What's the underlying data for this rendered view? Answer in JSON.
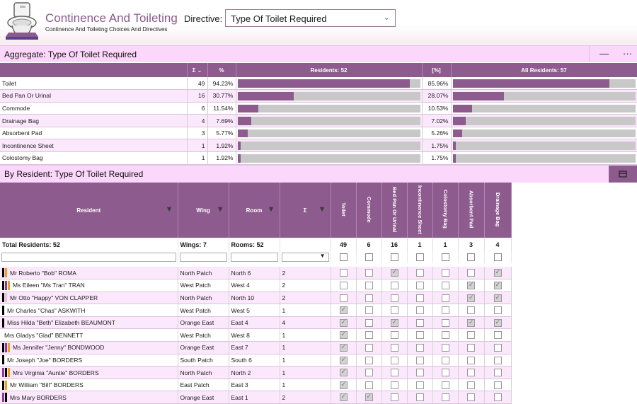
{
  "app": {
    "title": "Continence And Toileting",
    "subtitle": "Continence And Toileting Choices And Directives",
    "directive_label": "Directive:",
    "directive_value": "Type Of Toilet Required"
  },
  "aggregate": {
    "title": "Aggregate: Type Of Toilet Required",
    "minimize_icon": "—",
    "more_icon": "···",
    "headers": {
      "sigma": "Σ",
      "pct": "%",
      "residents": "Residents: 52",
      "bracket_pct": "[%]",
      "all_residents": "All Residents: 57"
    },
    "rows": [
      {
        "label": "Toilet",
        "count": "49",
        "pct": "94.23%",
        "frac": 0.9423,
        "all_pct": "85.96%",
        "all_frac": 0.8596
      },
      {
        "label": "Bed Pan Or Urinal",
        "count": "16",
        "pct": "30.77%",
        "frac": 0.3077,
        "all_pct": "28.07%",
        "all_frac": 0.2807
      },
      {
        "label": "Commode",
        "count": "6",
        "pct": "11.54%",
        "frac": 0.1154,
        "all_pct": "10.53%",
        "all_frac": 0.1053
      },
      {
        "label": "Drainage Bag",
        "count": "4",
        "pct": "7.69%",
        "frac": 0.0769,
        "all_pct": "7.02%",
        "all_frac": 0.0702
      },
      {
        "label": "Absorbent Pad",
        "count": "3",
        "pct": "5.77%",
        "frac": 0.0577,
        "all_pct": "5.26%",
        "all_frac": 0.0526
      },
      {
        "label": "Incontinence Sheet",
        "count": "1",
        "pct": "1.92%",
        "frac": 0.0192,
        "all_pct": "1.75%",
        "all_frac": 0.0175
      },
      {
        "label": "Colostomy Bag",
        "count": "1",
        "pct": "1.92%",
        "frac": 0.0192,
        "all_pct": "1.75%",
        "all_frac": 0.0175
      }
    ]
  },
  "by_resident": {
    "title": "By Resident: Type Of Toilet Required",
    "headers": {
      "resident": "Resident",
      "wing": "Wing",
      "room": "Room",
      "sigma": "Σ",
      "toilet": "Toilet",
      "commode": "Commode",
      "bedpan": "Bed Pan Or Urinal",
      "incontinence": "Incontinence Sheet",
      "colostomy": "Colostomy Bag",
      "absorbent": "Absorbent Pad",
      "drainage": "Drainage Bag"
    },
    "totals": {
      "residents": "Total Residents: 52",
      "wings": "Wings: 7",
      "rooms": "Rooms: 52",
      "toilet": "49",
      "commode": "6",
      "bedpan": "16",
      "incontinence": "1",
      "colostomy": "1",
      "absorbent": "3",
      "drainage": "4"
    },
    "rows": [
      {
        "name": "Mr Roberto \"Bob\" ROMA",
        "wing": "North Patch",
        "room": "North   6",
        "sum": "2",
        "markers": [
          "#000000",
          "#f0a020"
        ],
        "checks": [
          false,
          false,
          true,
          false,
          false,
          false,
          true
        ]
      },
      {
        "name": "Ms Eileen \"Ms Tran\" TRAN",
        "wing": "West Patch",
        "room": "West  4",
        "sum": "2",
        "markers": [
          "#000000",
          "#8d3b8d",
          "#f0a020"
        ],
        "checks": [
          false,
          false,
          false,
          false,
          false,
          true,
          true
        ]
      },
      {
        "name": "Mr  Otto \"Happy\" VON CLAPPER",
        "wing": "North Patch",
        "room": "North  10",
        "sum": "2",
        "markers": [
          "#000000",
          "#f0c0d0"
        ],
        "checks": [
          false,
          false,
          false,
          false,
          false,
          true,
          true
        ]
      },
      {
        "name": "Mr Charles \"Chas\" ASKWITH",
        "wing": "West Patch",
        "room": "West  5",
        "sum": "1",
        "markers": [
          "#000000"
        ],
        "checks": [
          true,
          false,
          false,
          false,
          false,
          false,
          false
        ]
      },
      {
        "name": "Miss Hilda \"Beth\" Elizabeth BEAUMONT",
        "wing": "Orange East",
        "room": "East  4",
        "sum": "4",
        "markers": [
          "#000000"
        ],
        "checks": [
          true,
          false,
          true,
          false,
          false,
          true,
          true
        ]
      },
      {
        "name": "Mrs Gladys \"Glad\" BENNETT",
        "wing": "West Patch",
        "room": "West  8",
        "sum": "1",
        "markers": [],
        "checks": [
          true,
          false,
          false,
          false,
          false,
          false,
          false
        ]
      },
      {
        "name": "Ms Jennifer \"Jenny\" BONDWOOD",
        "wing": "Orange East",
        "room": "East  7",
        "sum": "1",
        "markers": [
          "#000000",
          "#8d3b8d",
          "#f0a020"
        ],
        "checks": [
          true,
          false,
          false,
          false,
          false,
          false,
          false
        ]
      },
      {
        "name": "Mr Joseph \"Joe\" BORDERS",
        "wing": "South Patch",
        "room": "South  6",
        "sum": "1",
        "markers": [
          "#000000"
        ],
        "checks": [
          true,
          false,
          false,
          false,
          false,
          false,
          false
        ]
      },
      {
        "name": "Mrs Virginia \"Auntie\" BORDERS",
        "wing": "North Patch",
        "room": "North   2",
        "sum": "1",
        "markers": [
          "#8d3b8d",
          "#000000",
          "#f0a020"
        ],
        "checks": [
          true,
          false,
          false,
          false,
          false,
          false,
          false
        ]
      },
      {
        "name": "Mr William \"Bill\" BORDERS",
        "wing": "East Patch",
        "room": "East  3",
        "sum": "1",
        "markers": [
          "#000000",
          "#f0a020"
        ],
        "checks": [
          true,
          false,
          false,
          false,
          false,
          false,
          false
        ]
      },
      {
        "name": "Mrs Mary BORDERS",
        "wing": "Orange East",
        "room": "East  1",
        "sum": "2",
        "markers": [
          "#8d3b8d",
          "#000000"
        ],
        "checks": [
          true,
          true,
          false,
          false,
          false,
          false,
          false
        ]
      }
    ]
  },
  "icons": {
    "filter": "filter-icon",
    "sort": "sort-down-icon",
    "chevron": "chevron-down-icon",
    "layout": "panel-layout-icon"
  },
  "colors": {
    "accent": "#8d5b8d",
    "row_alt": "#fce8fc",
    "section": "#fbd8fb",
    "bar_track": "#c8c8c8"
  }
}
